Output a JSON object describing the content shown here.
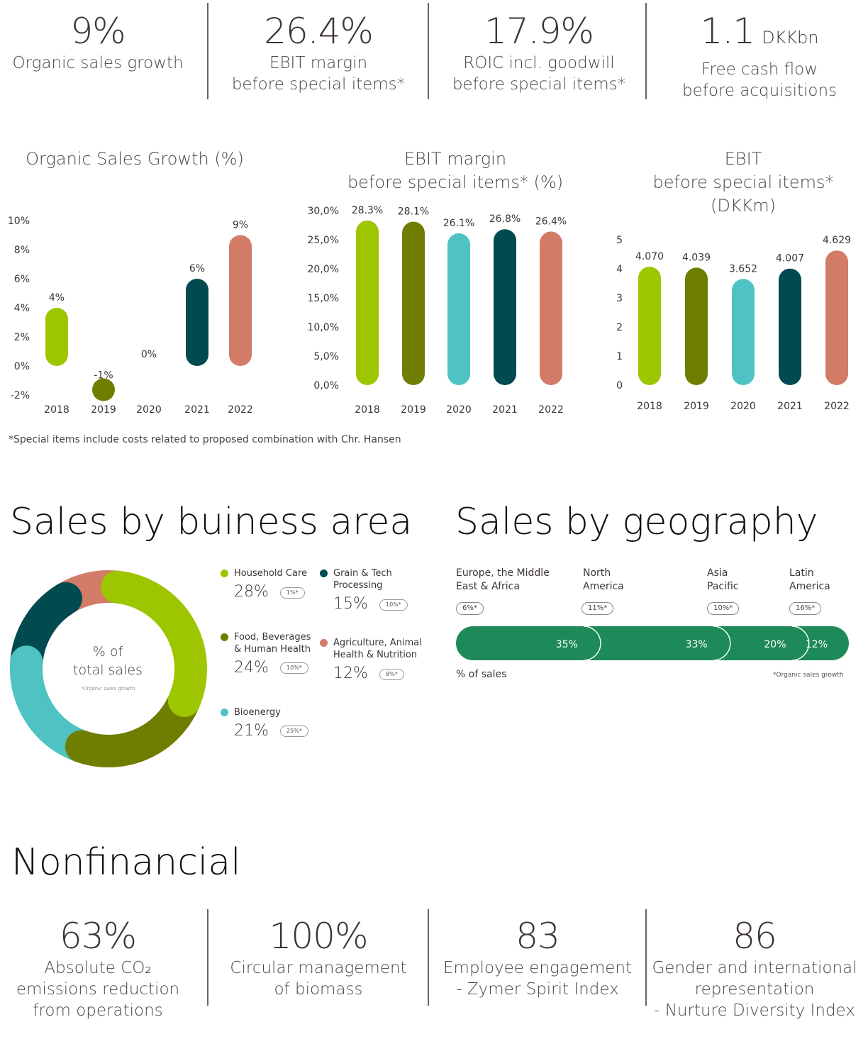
{
  "kpis_top": [
    {
      "value": "9%",
      "unit": "",
      "label": [
        "Organic sales growth"
      ]
    },
    {
      "value": "26.4%",
      "unit": "",
      "label": [
        "EBIT margin",
        "before special items*"
      ]
    },
    {
      "value": "17.9%",
      "unit": "",
      "label": [
        "ROIC incl. goodwill",
        "before special items*"
      ]
    },
    {
      "value": "1.1",
      "unit": "DKKbn",
      "label": [
        "Free cash flow",
        "before acquisitions"
      ]
    }
  ],
  "chart_titles": {
    "osg": [
      "Organic Sales Growth (%)"
    ],
    "ebit_margin": [
      "EBIT margin",
      "before special items* (%)"
    ],
    "ebit": [
      "EBIT",
      "before special items* (DKKm)"
    ]
  },
  "colors": {
    "2018": "#9ec600",
    "2019": "#6f7d00",
    "2020": "#4fc3c3",
    "2021": "#004a50",
    "2022": "#d27b67",
    "geo_bar": "#1e8a5a"
  },
  "chart_data": [
    {
      "type": "bar",
      "title": "Organic Sales Growth (%)",
      "categories": [
        "2018",
        "2019",
        "2020",
        "2021",
        "2022"
      ],
      "values": [
        4,
        -1,
        0,
        6,
        9
      ],
      "data_labels": [
        "4%",
        "-1%",
        "0%",
        "6%",
        "9%"
      ],
      "y_ticks": [
        "10%",
        "8%",
        "6%",
        "4%",
        "2%",
        "0%",
        "-2%"
      ],
      "ylim": [
        -2,
        10
      ],
      "grid": false
    },
    {
      "type": "bar",
      "title": "EBIT margin before special items* (%)",
      "categories": [
        "2018",
        "2019",
        "2020",
        "2021",
        "2022"
      ],
      "values": [
        28.3,
        28.1,
        26.1,
        26.8,
        26.4
      ],
      "data_labels": [
        "28.3%",
        "28.1%",
        "26.1%",
        "26.8%",
        "26.4%"
      ],
      "y_ticks": [
        "30,0%",
        "25,0%",
        "20,0%",
        "15,0%",
        "10,0%",
        "5,0%",
        "0,0%"
      ],
      "ylim": [
        0,
        30
      ],
      "grid": false
    },
    {
      "type": "bar",
      "title": "EBIT before special items* (DKKm)",
      "categories": [
        "2018",
        "2019",
        "2020",
        "2021",
        "2022"
      ],
      "values": [
        4.07,
        4.039,
        3.652,
        4.007,
        4.629
      ],
      "data_labels": [
        "4.070",
        "4.039",
        "3.652",
        "4.007",
        "4.629"
      ],
      "y_ticks": [
        "5",
        "4",
        "3",
        "2",
        "1",
        "0"
      ],
      "ylim": [
        0,
        5
      ],
      "grid": false
    },
    {
      "type": "pie",
      "title": "Sales by buiness area",
      "center_text": [
        "% of",
        "total sales"
      ],
      "center_note": "*Organic sales growth",
      "slices": [
        {
          "name": "Household Care",
          "value": 28,
          "label": "28%",
          "growth": "1%*",
          "color": "#9ec600"
        },
        {
          "name": "Food, Beverages & Human Health",
          "value": 24,
          "label": "24%",
          "growth": "10%*",
          "color": "#6f7d00"
        },
        {
          "name": "Bioenergy",
          "value": 21,
          "label": "21%",
          "growth": "25%*",
          "color": "#4fc3c3"
        },
        {
          "name": "Grain & Tech Processing",
          "value": 15,
          "label": "15%",
          "growth": "10%*",
          "color": "#004a50"
        },
        {
          "name": "Agriculture, Animal Health & Nutrition",
          "value": 12,
          "label": "12%",
          "growth": "8%*",
          "color": "#d27b67"
        }
      ]
    },
    {
      "type": "bar",
      "title": "Sales by geography",
      "orientation": "stacked-horizontal",
      "categories": [
        "Europe, the Middle East & Africa",
        "North America",
        "Asia Pacific",
        "Latin America"
      ],
      "values": [
        35,
        33,
        20,
        12
      ],
      "data_labels": [
        "35%",
        "33%",
        "20%",
        "12%"
      ],
      "growth": [
        "6%*",
        "11%*",
        "10%*",
        "16%*"
      ],
      "xlabel": "% of sales",
      "note": "*Organic sales growth"
    }
  ],
  "legend_labels": {
    "household": [
      "Household Care"
    ],
    "food": [
      "Food, Beverages",
      "& Human Health"
    ],
    "bio": [
      "Bioenergy"
    ],
    "grain": [
      "Grain & Tech",
      "Processing"
    ],
    "agri": [
      "Agriculture, Animal",
      "Health & Nutrition"
    ]
  },
  "geo_labels": [
    [
      "Europe, the Middle",
      "East & Africa"
    ],
    [
      "North",
      "America"
    ],
    [
      "Asia",
      "Pacific"
    ],
    [
      "Latin",
      "America"
    ]
  ],
  "footnote": "*Special items include costs related to proposed combination with Chr. Hansen",
  "section_titles": {
    "business": "Sales by buiness area",
    "geography": "Sales by geography",
    "nonfinancial": "Nonfinancial"
  },
  "kpis_bottom": [
    {
      "value": "63%",
      "label": [
        "Absolute CO₂",
        "emissions reduction",
        "from operations"
      ]
    },
    {
      "value": "100%",
      "label": [
        "Circular management",
        "of biomass"
      ]
    },
    {
      "value": "83",
      "label": [
        "Employee engagement",
        "- Zymer Spirit Index"
      ]
    },
    {
      "value": "86",
      "label": [
        "Gender and international",
        "representation",
        "- Nurture Diversity Index"
      ]
    }
  ]
}
